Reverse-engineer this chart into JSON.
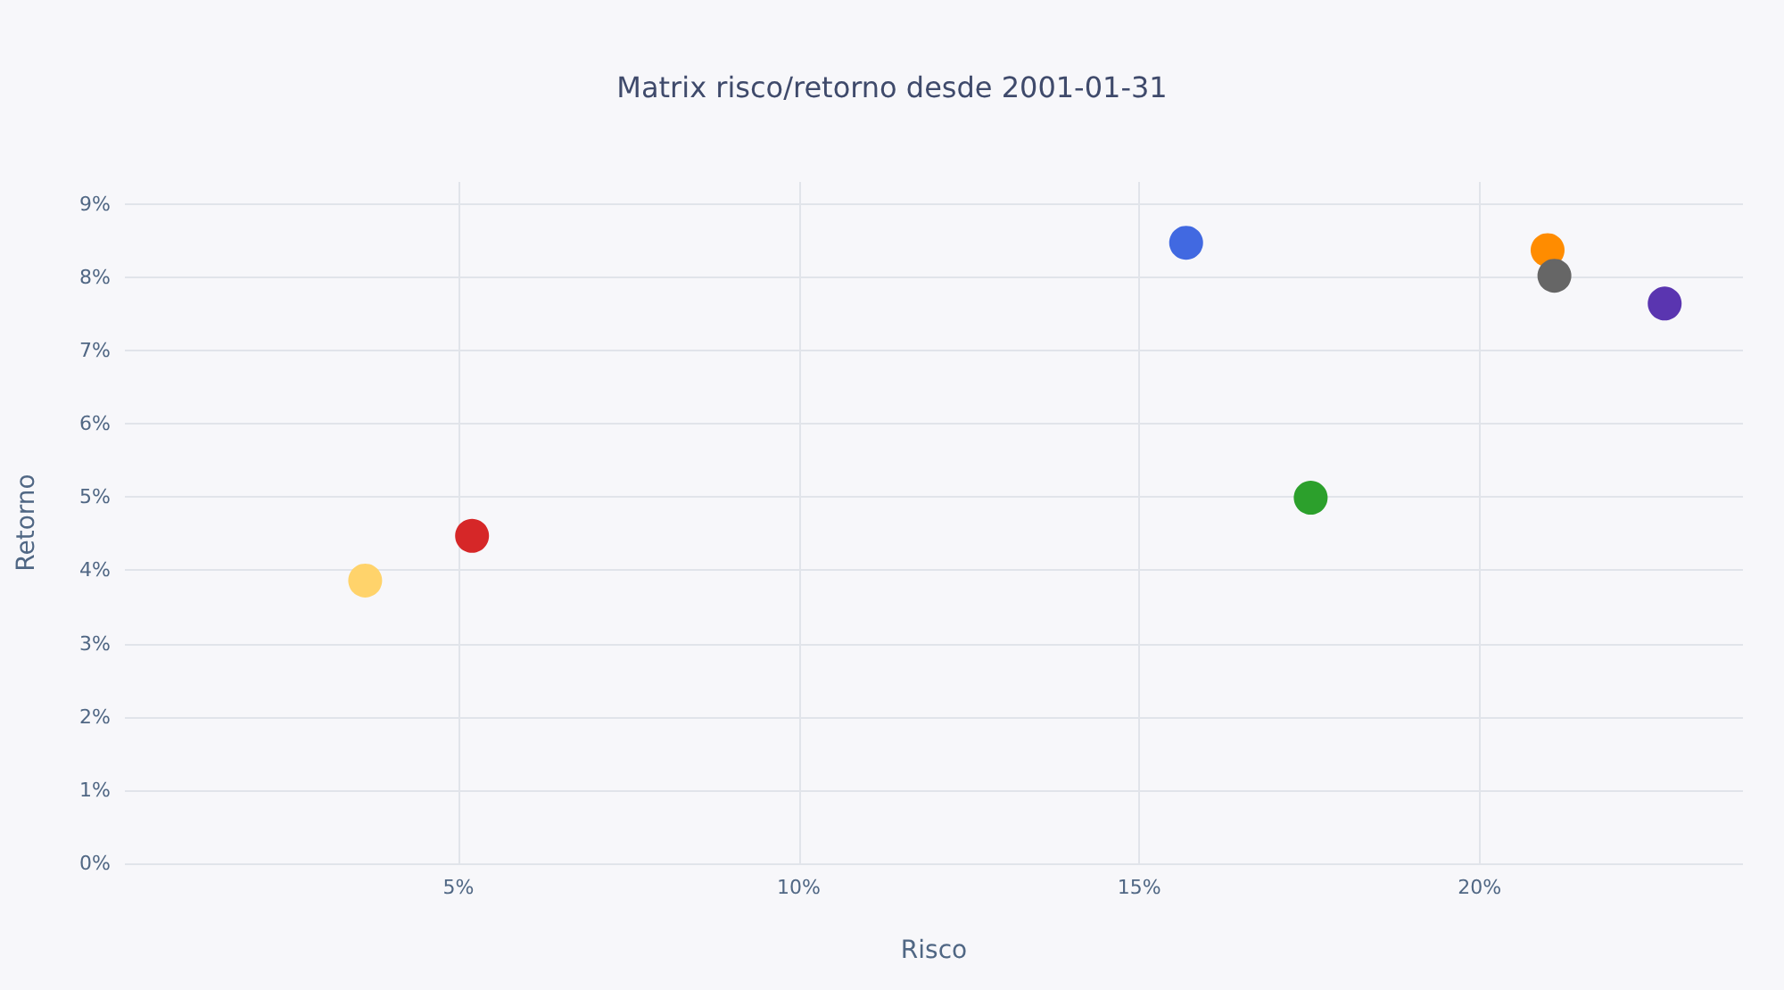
{
  "chart_data": {
    "type": "scatter",
    "title": "Matrix risco/retorno desde 2001-01-31",
    "xlabel": "Risco",
    "ylabel": "Retorno",
    "x": [
      3.63,
      5.2,
      15.69,
      17.52,
      21.0,
      21.1,
      22.72
    ],
    "values": [
      3.86,
      4.47,
      8.47,
      4.99,
      8.37,
      8.02,
      7.64
    ],
    "colors": [
      "#ffd36b",
      "#d62728",
      "#4169e1",
      "#2ca02c",
      "#ff8c00",
      "#666666",
      "#5a35b0"
    ],
    "xlim": [
      0.1,
      23.87
    ],
    "ylim": [
      0,
      9.3
    ],
    "xticks": [
      {
        "value": 5,
        "label": "5%"
      },
      {
        "value": 10,
        "label": "10%"
      },
      {
        "value": 15,
        "label": "15%"
      },
      {
        "value": 20,
        "label": "20%"
      }
    ],
    "yticks": [
      {
        "value": 0,
        "label": "0%"
      },
      {
        "value": 1,
        "label": "1%"
      },
      {
        "value": 2,
        "label": "2%"
      },
      {
        "value": 3,
        "label": "3%"
      },
      {
        "value": 4,
        "label": "4%"
      },
      {
        "value": 5,
        "label": "5%"
      },
      {
        "value": 6,
        "label": "6%"
      },
      {
        "value": 7,
        "label": "7%"
      },
      {
        "value": 8,
        "label": "8%"
      },
      {
        "value": 9,
        "label": "9%"
      }
    ],
    "grid": true,
    "marker": "circle"
  }
}
